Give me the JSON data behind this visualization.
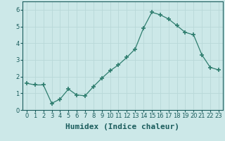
{
  "xlabel": "Humidex (Indice chaleur)",
  "ylabel": "",
  "x": [
    0,
    1,
    2,
    3,
    4,
    5,
    6,
    7,
    8,
    9,
    10,
    11,
    12,
    13,
    14,
    15,
    16,
    17,
    18,
    19,
    20,
    21,
    22,
    23
  ],
  "y": [
    1.6,
    1.5,
    1.5,
    0.4,
    0.65,
    1.25,
    0.9,
    0.85,
    1.4,
    1.9,
    2.35,
    2.7,
    3.15,
    3.65,
    4.9,
    5.85,
    5.7,
    5.45,
    5.05,
    4.65,
    4.5,
    3.3,
    2.55,
    2.4
  ],
  "line_color": "#2e7d6e",
  "marker": "+",
  "marker_size": 4,
  "bg_color": "#cce8e8",
  "grid_color": "#b8d8d8",
  "ylim": [
    0,
    6.5
  ],
  "xlim": [
    -0.5,
    23.5
  ],
  "yticks": [
    0,
    1,
    2,
    3,
    4,
    5,
    6
  ],
  "xtick_labels": [
    "0",
    "1",
    "2",
    "3",
    "4",
    "5",
    "6",
    "7",
    "8",
    "9",
    "10",
    "11",
    "12",
    "13",
    "14",
    "15",
    "16",
    "17",
    "18",
    "19",
    "20",
    "21",
    "22",
    "23"
  ],
  "tick_fontsize": 6,
  "xlabel_fontsize": 8,
  "axis_color": "#1a5c5c"
}
